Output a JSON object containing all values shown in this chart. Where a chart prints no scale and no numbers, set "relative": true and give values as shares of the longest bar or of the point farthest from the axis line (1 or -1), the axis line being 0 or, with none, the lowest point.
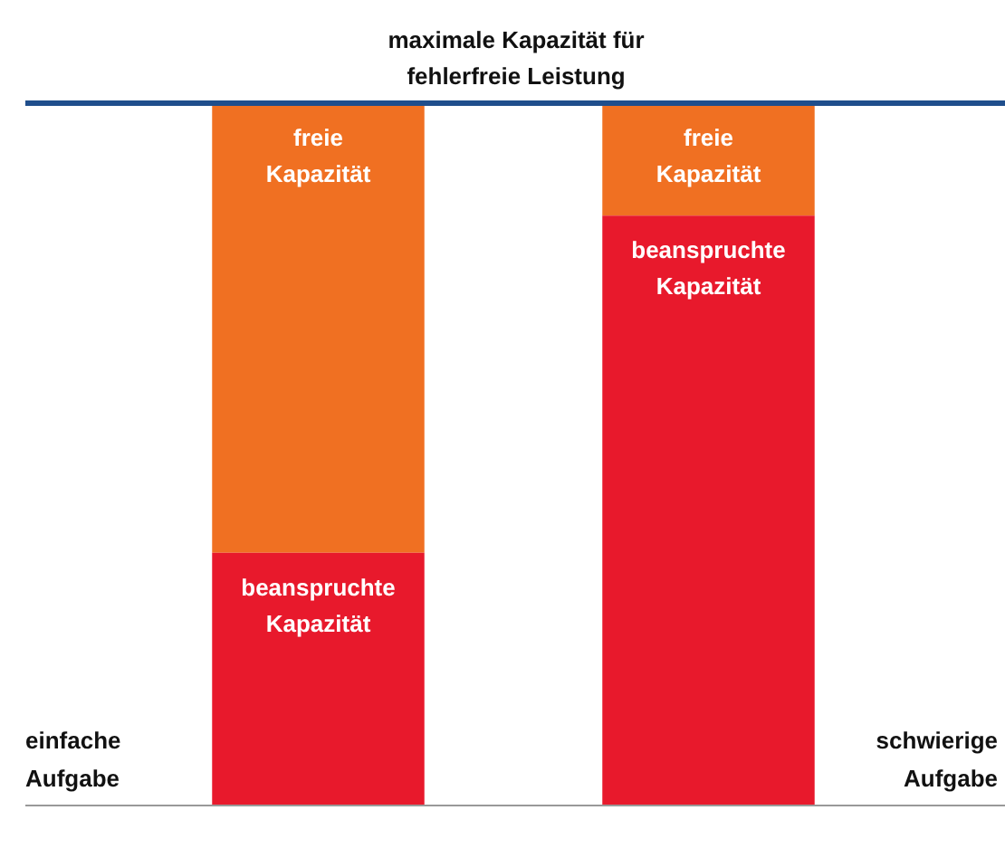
{
  "chart_data": {
    "type": "bar",
    "stacked": true,
    "relative": true,
    "categories": [
      null,
      null
    ],
    "series": [
      {
        "name": "beanspruchte Kapazität",
        "color": "#e8192c",
        "values": [
          0.36,
          0.84
        ]
      },
      {
        "name": "freie Kapazität",
        "color": "#f07022",
        "values": [
          0.64,
          0.16
        ]
      }
    ],
    "ref_lines": [
      {
        "axis": "y",
        "value": 1,
        "label": "maximale Kapazität für fehlerfreie Leistung",
        "color": "#1f4e8c"
      }
    ],
    "annotations": [
      "einfache Aufgabe",
      "schwierige Aufgabe"
    ],
    "legend": false
  }
}
